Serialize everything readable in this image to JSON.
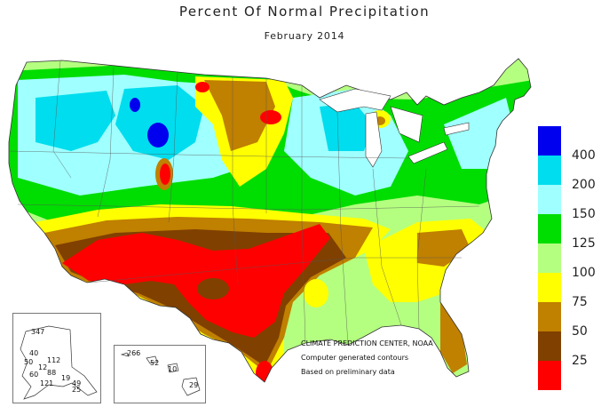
{
  "header": {
    "title": "Percent Of Normal Precipitation",
    "subtitle": "February 2014"
  },
  "legend": {
    "items": [
      {
        "label": "400",
        "color": "#0000ee"
      },
      {
        "label": "200",
        "color": "#00ddee"
      },
      {
        "label": "150",
        "color": "#a0ffff"
      },
      {
        "label": "125",
        "color": "#00dd00"
      },
      {
        "label": "100",
        "color": "#b4ff80"
      },
      {
        "label": "75",
        "color": "#ffff00"
      },
      {
        "label": "50",
        "color": "#c08000"
      },
      {
        "label": "25",
        "color": "#804000"
      },
      {
        "label": "",
        "color": "#ff0000"
      }
    ]
  },
  "credits": {
    "line1": "CLIMATE PREDICTION CENTER, NOAA",
    "line2": "Computer generated contours",
    "line3": "Based on preliminary data"
  },
  "alaska_values": [
    "347",
    "40",
    "50",
    "112",
    "12",
    "88",
    "60",
    "19",
    "121",
    "49",
    "25"
  ],
  "hawaii_values": [
    "266",
    "52",
    "10",
    "29"
  ]
}
